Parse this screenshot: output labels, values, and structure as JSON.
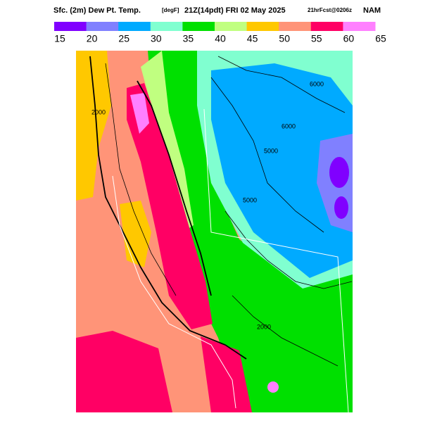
{
  "header": {
    "title": "Sfc. (2m) Dew Pt. Temp.",
    "units": "[degF]",
    "valid": "21Z(14pdt) FRI 02 May 2025",
    "forecast": "21hrFcst@0206z",
    "model": "NAM"
  },
  "colorbar": {
    "levels": [
      15,
      20,
      25,
      30,
      35,
      40,
      45,
      50,
      55,
      60,
      65
    ],
    "colors": [
      "#8000ff",
      "#8080ff",
      "#00aaff",
      "#80ffd0",
      "#00e000",
      "#c0ff80",
      "#ffc800",
      "#ff9478",
      "#ff0064",
      "#ff80ff"
    ]
  },
  "contour_labels": [
    "5000",
    "6000",
    "5000",
    "6000",
    "2000",
    "2000"
  ]
}
